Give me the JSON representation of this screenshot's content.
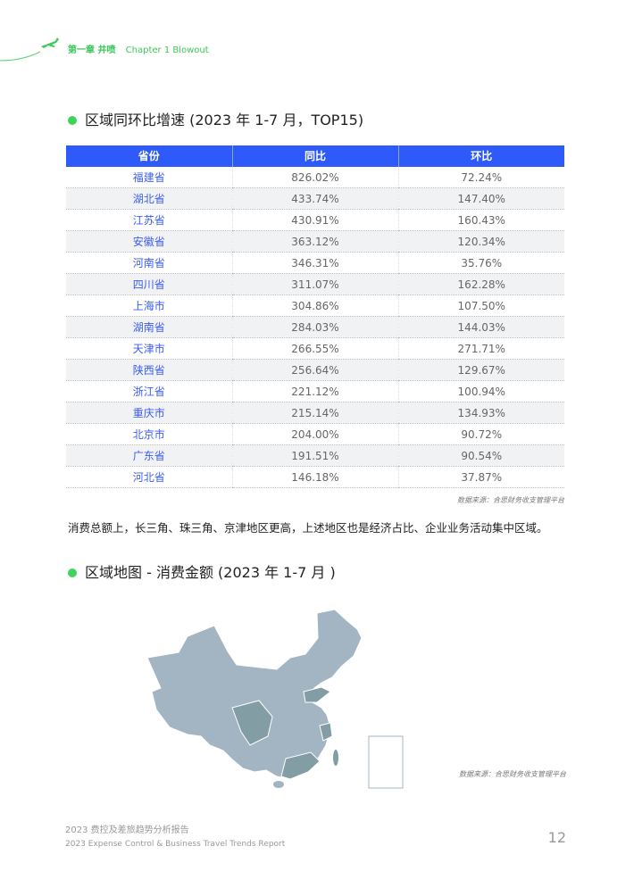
{
  "header": {
    "chapter_cn": "第一章 井喷",
    "chapter_en": "Chapter 1 Blowout",
    "icon": "airplane-icon",
    "accent": "#3cc85a"
  },
  "section1": {
    "title": "区域同环比增速 (2023 年 1-7 月，TOP15)"
  },
  "table": {
    "headers": [
      "省份",
      "同比",
      "环比"
    ],
    "header_color": "#2d5af8",
    "rows": [
      [
        "福建省",
        "826.02%",
        "72.24%"
      ],
      [
        "湖北省",
        "433.74%",
        "147.40%"
      ],
      [
        "江苏省",
        "430.91%",
        "160.43%"
      ],
      [
        "安徽省",
        "363.12%",
        "120.34%"
      ],
      [
        "河南省",
        "346.31%",
        "35.76%"
      ],
      [
        "四川省",
        "311.07%",
        "162.28%"
      ],
      [
        "上海市",
        "304.86%",
        "107.50%"
      ],
      [
        "湖南省",
        "284.03%",
        "144.03%"
      ],
      [
        "天津市",
        "266.55%",
        "271.71%"
      ],
      [
        "陕西省",
        "256.64%",
        "129.67%"
      ],
      [
        "浙江省",
        "221.12%",
        "100.94%"
      ],
      [
        "重庆市",
        "215.14%",
        "134.93%"
      ],
      [
        "北京市",
        "204.00%",
        "90.72%"
      ],
      [
        "广东省",
        "191.51%",
        "90.54%"
      ],
      [
        "河北省",
        "146.18%",
        "37.87%"
      ]
    ]
  },
  "source1": "数据来源：合思财务收支管理平台",
  "paragraph": "消费总额上，长三角、珠三角、京津地区更高，上述地区也是经济占比、企业业务活动集中区域。",
  "section2": {
    "title": "区域地图 - 消费金额 (2023 年 1-7 月 )"
  },
  "map": {
    "base_color": "#a3b5c2",
    "highlight_color": "#7f999f"
  },
  "source2": "数据来源：合思财务收支管理平台",
  "footer": {
    "title_cn": "2023 费控及差旅趋势分析报告",
    "title_en": "2023 Expense Control & Business Travel Trends Report",
    "page": "12"
  }
}
